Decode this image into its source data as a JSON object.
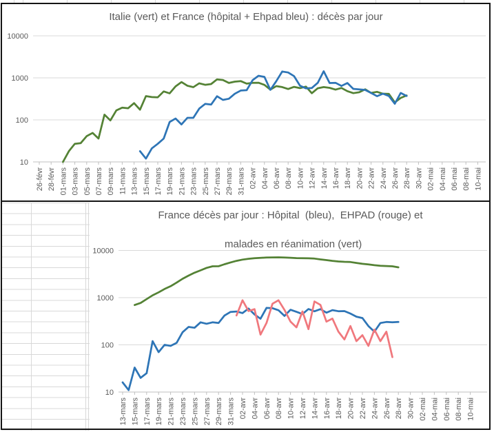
{
  "colors": {
    "green": "#548235",
    "blue": "#2E75B6",
    "red": "#F0787D",
    "gridline": "#D9D9D9",
    "axis_line": "#BFBFBF",
    "label_text": "#595959",
    "excel_grid": "#D8D8D8",
    "chart_border": "#141414"
  },
  "chart_data": [
    {
      "type": "line",
      "log_scale": true,
      "title": "Italie (vert) et France (hôpital + Ehpad bleu) : décès par jour",
      "ylabel": "",
      "xlabel": "",
      "ylim": [
        10,
        10000
      ],
      "y_ticks": [
        "10",
        "100",
        "1000",
        "10000"
      ],
      "grid": "horizontal",
      "legend": "none",
      "x_tick_labels": [
        "26-févr",
        "28-févr",
        "01-mars",
        "03-mars",
        "05-mars",
        "07-mars",
        "09-mars",
        "11-mars",
        "13-mars",
        "15-mars",
        "17-mars",
        "19-mars",
        "21-mars",
        "23-mars",
        "25-mars",
        "27-mars",
        "29-mars",
        "31-mars",
        "02-avr",
        "04-avr",
        "06-avr",
        "08-avr",
        "10-avr",
        "12-avr",
        "14-avr",
        "16-avr",
        "18-avr",
        "20-avr",
        "22-avr",
        "24-avr",
        "26-avr",
        "28-avr",
        "30-avr",
        "02-mai",
        "04-mai",
        "06-mai",
        "08-mai",
        "10-mai"
      ],
      "x_axis_start": "26-févr",
      "x_days_total": 74,
      "series": [
        {
          "name": "Italie",
          "color": "green",
          "start_day": 4,
          "start_date": "01-mars",
          "values": [
            10,
            18,
            27,
            28,
            41,
            49,
            36,
            133,
            97,
            168,
            196,
            189,
            250,
            175,
            368,
            349,
            345,
            475,
            427,
            627,
            793,
            651,
            601,
            743,
            683,
            712,
            919,
            889,
            756,
            812,
            837,
            727,
            760,
            766,
            681,
            525,
            636,
            604,
            542,
            610,
            570,
            619,
            431,
            566,
            602,
            578,
            525,
            575,
            482,
            433,
            454,
            534,
            437,
            464,
            420,
            415,
            260,
            333,
            382
          ]
        },
        {
          "name": "France hôpital + Ehpad",
          "color": "blue",
          "start_day": 17,
          "start_date": "14-mars",
          "values": [
            18,
            12,
            21,
            27,
            36,
            89,
            108,
            78,
            112,
            112,
            186,
            240,
            231,
            365,
            299,
            319,
            418,
            499,
            509,
            880,
            1120,
            1053,
            518,
            833,
            1417,
            1341,
            1100,
            650,
            561,
            574,
            762,
            1438,
            753,
            761,
            642,
            753,
            547,
            531,
            516,
            437,
            367,
            420,
            370,
            242,
            437,
            370
          ]
        }
      ]
    },
    {
      "type": "line",
      "log_scale": true,
      "title_line1": "France décès par jour : Hôpital  (bleu),  EHPAD (rouge) et",
      "title_line2": "malades en réanimation (vert)",
      "ylabel": "",
      "xlabel": "",
      "ylim": [
        10,
        10000
      ],
      "y_ticks": [
        "10",
        "100",
        "1000",
        "10000"
      ],
      "grid": "horizontal",
      "legend": "none",
      "x_tick_labels": [
        "13-mars",
        "15-mars",
        "17-mars",
        "19-mars",
        "21-mars",
        "23-mars",
        "25-mars",
        "27-mars",
        "29-mars",
        "31-mars",
        "02-avr",
        "04-avr",
        "06-avr",
        "08-avr",
        "10-avr",
        "12-avr",
        "14-avr",
        "16-avr",
        "18-avr",
        "20-avr",
        "22-avr",
        "24-avr",
        "26-avr",
        "28-avr",
        "30-avr",
        "02-mai",
        "04-mai",
        "06-mai",
        "08-mai",
        "10-mai"
      ],
      "x_axis_start": "13-mars",
      "x_days_total": 58,
      "series": [
        {
          "name": "Hôpital",
          "color": "blue",
          "start_day": 0,
          "start_date": "13-mars",
          "values": [
            16,
            11,
            33,
            20,
            25,
            120,
            70,
            100,
            95,
            110,
            185,
            240,
            230,
            300,
            280,
            300,
            290,
            418,
            499,
            509,
            471,
            588,
            441,
            357,
            605,
            597,
            541,
            410,
            554,
            500,
            450,
            575,
            514,
            570,
            480,
            544,
            515,
            520,
            460,
            395,
            370,
            250,
            190,
            290,
            305,
            300,
            305
          ]
        },
        {
          "name": "EHPAD",
          "color": "red",
          "start_day": 19,
          "start_date": "01-avr",
          "values": [
            420,
            880,
            520,
            570,
            165,
            290,
            744,
            880,
            550,
            310,
            235,
            510,
            215,
            830,
            700,
            310,
            360,
            190,
            130,
            250,
            120,
            160,
            95,
            210,
            120,
            190,
            55
          ]
        },
        {
          "name": "malades en réanimation",
          "color": "green",
          "start_day": 2,
          "start_date": "15-mars",
          "values": [
            699,
            771,
            931,
            1122,
            1297,
            1525,
            1746,
            2082,
            2516,
            2935,
            3375,
            3787,
            4273,
            4611,
            4632,
            5107,
            5565,
            6017,
            6399,
            6662,
            6838,
            6978,
            7072,
            7131,
            7148,
            7066,
            7004,
            6883,
            6845,
            6821,
            6730,
            6457,
            6248,
            6027,
            5833,
            5744,
            5683,
            5433,
            5218,
            5053,
            4870,
            4725,
            4682,
            4608,
            4387
          ]
        }
      ]
    }
  ]
}
